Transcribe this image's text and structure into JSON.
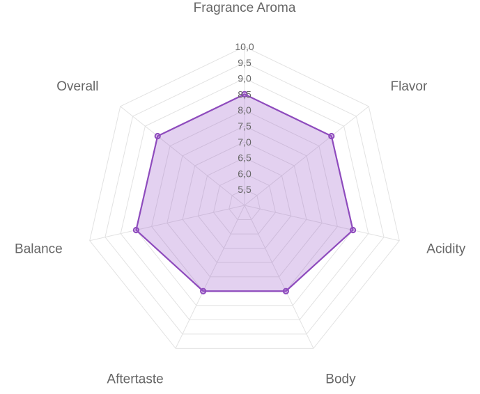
{
  "chart_data": {
    "type": "radar",
    "axes": [
      "Fragrance Aroma",
      "Flavor",
      "Acidity",
      "Body",
      "Aftertaste",
      "Balance",
      "Overall"
    ],
    "series": [
      {
        "values": [
          8.5,
          8.5,
          8.5,
          8.0,
          8.0,
          8.5,
          8.5
        ],
        "color": "#8e4bbd",
        "fill": "rgba(155, 89, 200, 0.28)"
      }
    ],
    "rlim": [
      5.0,
      10.0
    ],
    "ticks": [
      "5,5",
      "6,0",
      "6,5",
      "7,0",
      "7,5",
      "8,0",
      "8,5",
      "9,0",
      "9,5",
      "10,0"
    ],
    "grid": true
  }
}
